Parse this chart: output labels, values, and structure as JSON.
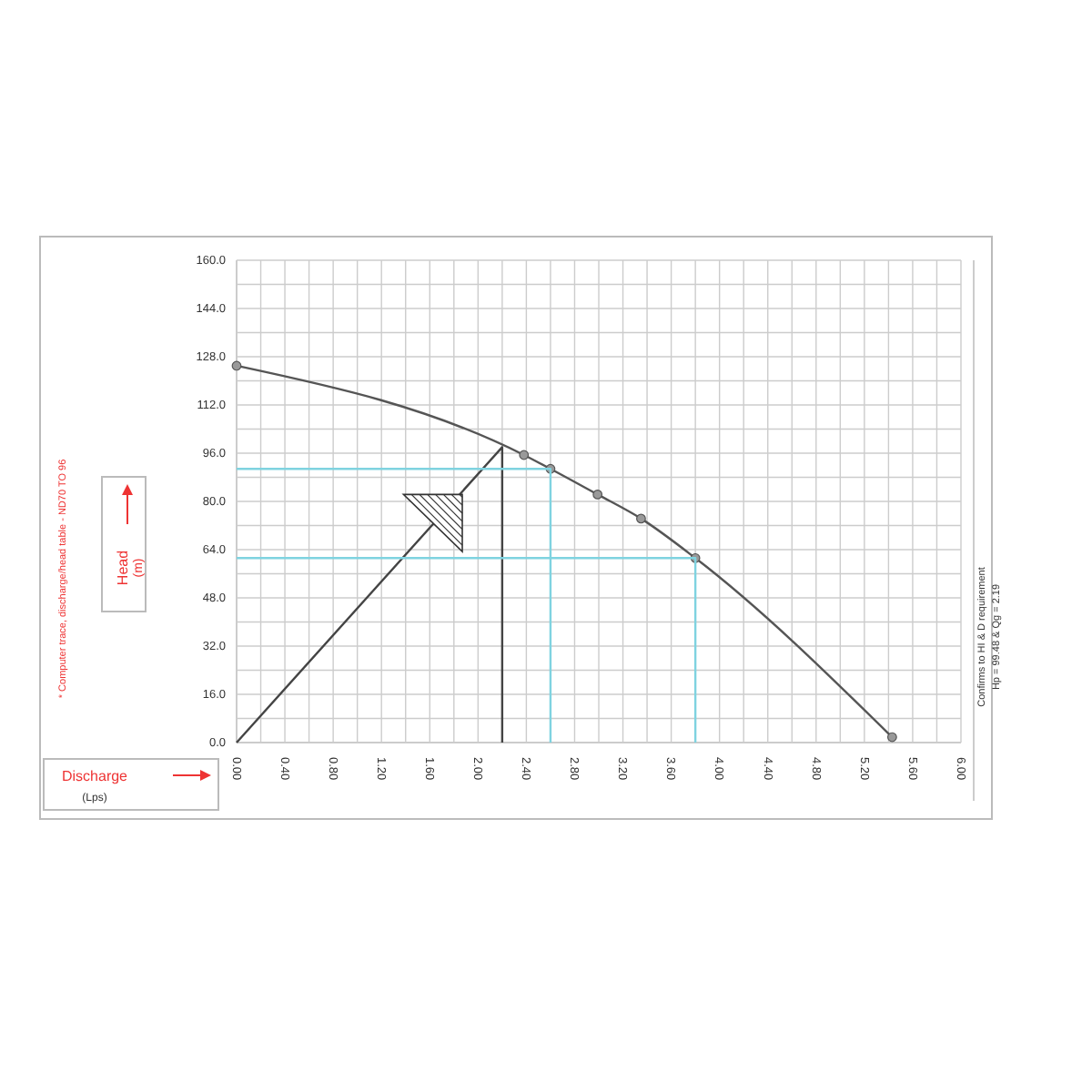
{
  "chart_data": {
    "type": "line",
    "xlabel": "Discharge",
    "ylabel": "Head",
    "xlim": [
      0,
      6
    ],
    "ylim": [
      0,
      160
    ],
    "xticks": [
      {
        "value": 0,
        "label": "0.00"
      },
      {
        "value": 0.2,
        "label": null
      },
      {
        "value": 0.4,
        "label": "0.40"
      },
      {
        "value": 0.6,
        "label": null
      },
      {
        "value": 0.8,
        "label": "0.80"
      },
      {
        "value": 1.0,
        "label": null
      },
      {
        "value": 1.2,
        "label": "1.20"
      },
      {
        "value": 1.4,
        "label": null
      },
      {
        "value": 1.6,
        "label": "1.60"
      },
      {
        "value": 1.8,
        "label": null
      },
      {
        "value": 2.0,
        "label": "2.00"
      },
      {
        "value": 2.2,
        "label": null
      },
      {
        "value": 2.4,
        "label": "2.40"
      },
      {
        "value": 2.6,
        "label": null
      },
      {
        "value": 2.8,
        "label": "2.80"
      },
      {
        "value": 3.0,
        "label": null
      },
      {
        "value": 3.2,
        "label": "3.20"
      },
      {
        "value": 3.4,
        "label": null
      },
      {
        "value": 3.6,
        "label": "3.60"
      },
      {
        "value": 3.8,
        "label": null
      },
      {
        "value": 4.0,
        "label": "4.00"
      },
      {
        "value": 4.2,
        "label": null
      },
      {
        "value": 4.4,
        "label": "4.40"
      },
      {
        "value": 4.6,
        "label": null
      },
      {
        "value": 4.8,
        "label": "4.80"
      },
      {
        "value": 5.0,
        "label": null
      },
      {
        "value": 5.2,
        "label": "5.20"
      },
      {
        "value": 5.4,
        "label": null
      },
      {
        "value": 5.6,
        "label": "5.60"
      },
      {
        "value": 5.8,
        "label": null
      },
      {
        "value": 6.0,
        "label": "6.00"
      }
    ],
    "yticks": [
      {
        "value": 0,
        "label": "0.0"
      },
      {
        "value": 8,
        "label": null
      },
      {
        "value": 16,
        "label": "16.0"
      },
      {
        "value": 24,
        "label": null
      },
      {
        "value": 32,
        "label": "32.0"
      },
      {
        "value": 40,
        "label": null
      },
      {
        "value": 48,
        "label": "48.0"
      },
      {
        "value": 56,
        "label": null
      },
      {
        "value": 64,
        "label": "64.0"
      },
      {
        "value": 72,
        "label": null
      },
      {
        "value": 80,
        "label": "80.0"
      },
      {
        "value": 88,
        "label": null
      },
      {
        "value": 96,
        "label": "96.0"
      },
      {
        "value": 104,
        "label": null
      },
      {
        "value": 112,
        "label": "112.0"
      },
      {
        "value": 120,
        "label": null
      },
      {
        "value": 128,
        "label": "128.0"
      },
      {
        "value": 136,
        "label": null
      },
      {
        "value": 144,
        "label": "144.0"
      },
      {
        "value": 152,
        "label": null
      },
      {
        "value": 160,
        "label": "160.0"
      }
    ],
    "grid": true,
    "series": [
      {
        "color": "#555555",
        "marker": "circle",
        "x": [
          0,
          2.38,
          2.6,
          2.99,
          3.35,
          3.8,
          5.43
        ],
        "values": [
          125,
          95.4,
          90.8,
          82.3,
          74.3,
          61.2,
          1.8
        ]
      },
      {
        "color": "#444444",
        "marker": "none",
        "x": [
          0,
          2.2,
          2.2
        ],
        "values": [
          0,
          98,
          0
        ]
      },
      {
        "color": "#7fd3e0",
        "marker": "none",
        "x": [
          0,
          2.6,
          2.6
        ],
        "values": [
          90.8,
          90.8,
          0
        ]
      },
      {
        "color": "#7fd3e0",
        "marker": "none",
        "x": [
          0,
          3.8,
          3.8
        ],
        "values": [
          61.2,
          61.2,
          0
        ]
      }
    ],
    "annotations": [
      "* Computer trace, discharge/head table - ND70 TO 96",
      "Confirms to HI & D requirement",
      "Hp = 99.48 & Qg = 2.19",
      "(m)",
      "(Lps)"
    ]
  }
}
